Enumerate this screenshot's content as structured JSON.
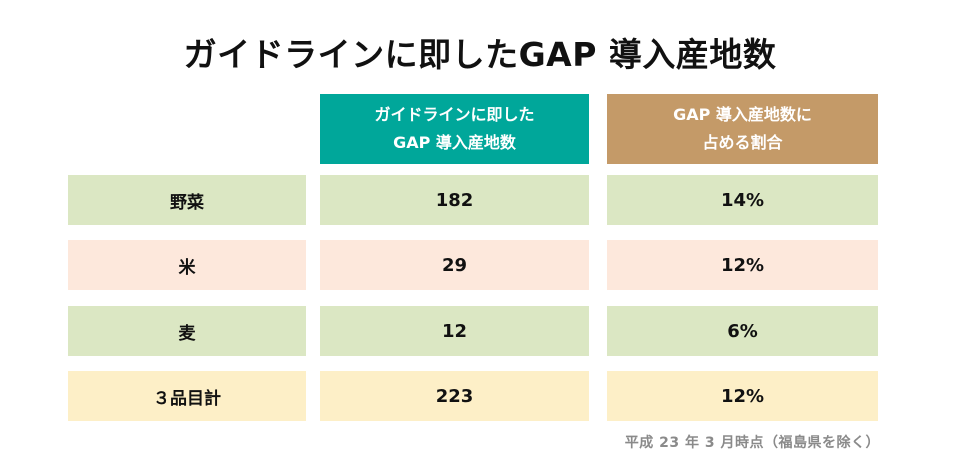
{
  "title": "ガイドラインに即したGAP 導入産地数",
  "colors": {
    "header_1": "#00a79a",
    "header_2": "#c49a68",
    "row_green": "#dbe7c3",
    "row_pink": "#fde8dc",
    "row_yellow": "#fdefc7"
  },
  "chart_data": {
    "type": "table",
    "title": "ガイドラインに即したGAP 導入産地数",
    "columns": [
      {
        "label_line1": "ガイドラインに即した",
        "label_line2": "GAP 導入産地数"
      },
      {
        "label_line1": "GAP 導入産地数に",
        "label_line2": "占める割合"
      }
    ],
    "rows": [
      {
        "label": "野菜",
        "count": "182",
        "share": "14%",
        "color": "#dbe7c3"
      },
      {
        "label": "米",
        "count": "29",
        "share": "12%",
        "color": "#fde8dc"
      },
      {
        "label": "麦",
        "count": "12",
        "share": "6%",
        "color": "#dbe7c3"
      },
      {
        "label": "３品目計",
        "count": "223",
        "share": "12%",
        "color": "#fdefc7"
      }
    ],
    "note": "平成 23 年 3 月時点（福島県を除く）"
  }
}
